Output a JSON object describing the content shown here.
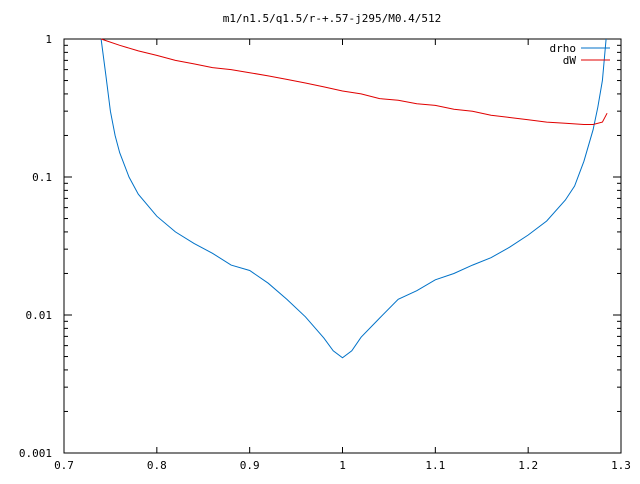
{
  "chart_data": {
    "type": "line",
    "title": "m1/n1.5/q1.5/r-+.57-j295/M0.4/512",
    "xlabel": "",
    "ylabel": "",
    "xlim": [
      0.7,
      1.3
    ],
    "ylim": [
      0.001,
      1
    ],
    "y_scale": "log",
    "grid": false,
    "legend_position": "top-right",
    "x_ticks": [
      0.7,
      0.8,
      0.9,
      1,
      1.1,
      1.2,
      1.3
    ],
    "x_tick_labels": [
      "0.7",
      "0.8",
      "0.9",
      "1",
      "1.1",
      "1.2",
      "1.3"
    ],
    "y_ticks": [
      1,
      0.1,
      0.01,
      0.001
    ],
    "y_tick_labels": [
      "1",
      "0.1",
      "0.01",
      "0.001"
    ],
    "series": [
      {
        "name": "drho",
        "color": "#0072c8",
        "x": [
          0.74,
          0.745,
          0.75,
          0.755,
          0.76,
          0.77,
          0.78,
          0.8,
          0.82,
          0.84,
          0.86,
          0.88,
          0.9,
          0.92,
          0.94,
          0.96,
          0.98,
          0.99,
          1.0,
          1.01,
          1.02,
          1.04,
          1.06,
          1.08,
          1.1,
          1.12,
          1.14,
          1.16,
          1.18,
          1.2,
          1.22,
          1.24,
          1.25,
          1.26,
          1.27,
          1.275,
          1.28,
          1.284
        ],
        "y": [
          1.0,
          0.55,
          0.3,
          0.2,
          0.15,
          0.1,
          0.075,
          0.052,
          0.04,
          0.033,
          0.028,
          0.023,
          0.021,
          0.017,
          0.013,
          0.0097,
          0.0068,
          0.0055,
          0.0049,
          0.0055,
          0.0069,
          0.0095,
          0.013,
          0.015,
          0.018,
          0.02,
          0.023,
          0.026,
          0.031,
          0.038,
          0.048,
          0.068,
          0.086,
          0.13,
          0.22,
          0.32,
          0.5,
          1.0
        ]
      },
      {
        "name": "dW",
        "color": "#e00000",
        "x": [
          0.74,
          0.76,
          0.78,
          0.8,
          0.82,
          0.84,
          0.86,
          0.88,
          0.9,
          0.92,
          0.94,
          0.96,
          0.98,
          1.0,
          1.02,
          1.04,
          1.06,
          1.08,
          1.1,
          1.12,
          1.14,
          1.16,
          1.18,
          1.2,
          1.22,
          1.24,
          1.26,
          1.27,
          1.28,
          1.285
        ],
        "y": [
          1.0,
          0.9,
          0.82,
          0.76,
          0.7,
          0.66,
          0.62,
          0.6,
          0.57,
          0.54,
          0.51,
          0.48,
          0.45,
          0.42,
          0.4,
          0.37,
          0.36,
          0.34,
          0.33,
          0.31,
          0.3,
          0.28,
          0.27,
          0.26,
          0.25,
          0.245,
          0.24,
          0.24,
          0.25,
          0.29
        ]
      }
    ]
  }
}
